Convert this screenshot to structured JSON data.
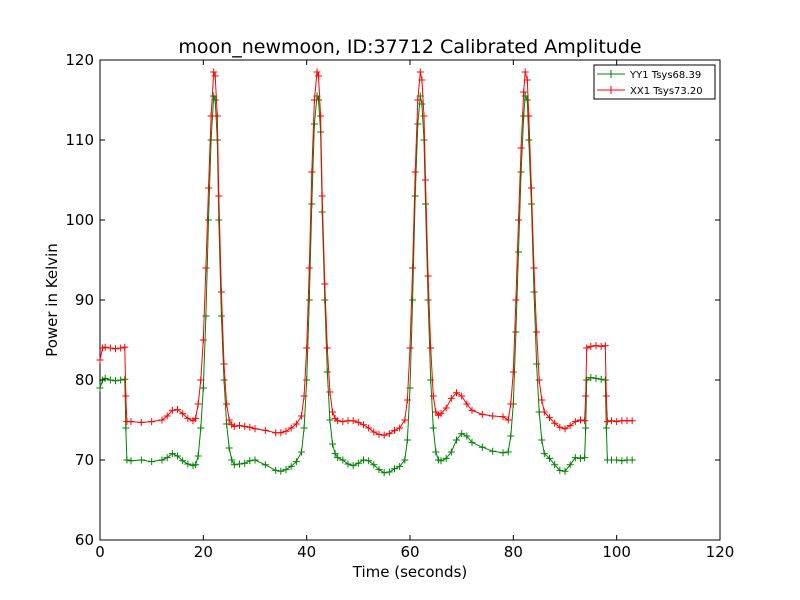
{
  "chart_data": {
    "type": "line",
    "title": "moon_newmoon, ID:37712 Calibrated Amplitude",
    "xlabel": "Time (seconds)",
    "ylabel": "Power in Kelvin",
    "xlim": [
      0,
      120
    ],
    "ylim": [
      60,
      120
    ],
    "xticks": [
      0,
      20,
      40,
      60,
      80,
      100,
      120
    ],
    "yticks": [
      60,
      70,
      80,
      90,
      100,
      110,
      120
    ],
    "grid": false,
    "legend_position": "top-right",
    "marker": "plus",
    "series": [
      {
        "name": "YY1 Tsys68.39",
        "color": "#008000",
        "x": [
          0,
          0.5,
          1,
          2,
          3,
          4,
          4.8,
          5.0,
          5.2,
          6,
          8,
          10,
          12,
          13,
          14,
          15,
          16,
          17,
          18,
          18.5,
          19,
          19.5,
          20,
          20.5,
          21,
          21.5,
          22,
          22.3,
          22.7,
          23,
          23.5,
          24,
          24.5,
          25,
          25.5,
          26,
          27,
          28,
          29,
          30,
          32,
          34,
          35,
          36,
          37,
          38,
          39,
          39.5,
          40,
          40.5,
          41,
          41.5,
          42,
          42.3,
          42.7,
          43,
          43.5,
          44,
          44.5,
          45,
          45.5,
          46,
          47,
          48,
          49,
          50,
          51,
          52,
          53,
          54,
          55,
          56,
          57,
          58,
          59,
          59.5,
          60,
          60.5,
          61,
          61.5,
          62,
          62.3,
          62.7,
          63,
          63.5,
          64,
          64.5,
          65,
          65.5,
          66,
          67,
          68,
          69,
          70,
          71,
          72,
          74,
          76,
          78,
          79,
          79.5,
          80,
          80.5,
          81,
          81.5,
          82,
          82.3,
          82.7,
          83,
          83.5,
          84,
          84.5,
          85,
          85.5,
          86,
          87,
          88,
          89,
          90,
          91,
          92,
          93,
          93.8,
          94.0,
          94.2,
          95,
          96,
          97,
          97.8,
          98.0,
          98.2,
          99,
          100,
          101,
          102,
          103
        ],
        "y": [
          79.0,
          80.0,
          80.2,
          80.0,
          79.9,
          80.0,
          80.1,
          74.0,
          70.0,
          69.9,
          70.0,
          69.8,
          70.0,
          70.3,
          70.8,
          70.5,
          69.9,
          69.5,
          69.3,
          69.4,
          70.5,
          74.0,
          79.0,
          88.0,
          100.0,
          110.0,
          115.5,
          115.0,
          110.0,
          100.0,
          88.0,
          80.0,
          74.5,
          71.5,
          70.0,
          69.4,
          69.5,
          69.6,
          69.9,
          70.0,
          69.4,
          68.7,
          68.6,
          68.8,
          69.2,
          69.8,
          71.0,
          74.0,
          80.0,
          90.0,
          102.0,
          112.0,
          115.5,
          115.0,
          111.0,
          101.0,
          90.0,
          81.0,
          75.0,
          72.0,
          70.8,
          70.3,
          70.0,
          69.5,
          69.3,
          69.6,
          70.0,
          69.9,
          69.4,
          68.8,
          68.4,
          68.5,
          68.9,
          69.2,
          70.0,
          72.5,
          79.0,
          90.0,
          103.0,
          112.0,
          115.5,
          114.5,
          110.0,
          102.0,
          90.0,
          80.0,
          74.0,
          71.0,
          70.0,
          69.9,
          70.2,
          71.0,
          72.5,
          73.3,
          73.0,
          72.2,
          71.6,
          71.1,
          70.9,
          71.0,
          73.0,
          77.0,
          86.0,
          96.0,
          106.0,
          113.0,
          115.5,
          115.0,
          110.0,
          102.0,
          91.0,
          82.0,
          76.0,
          72.5,
          70.8,
          70.2,
          69.4,
          68.7,
          68.6,
          69.4,
          70.3,
          70.2,
          70.3,
          74.0,
          80.0,
          80.3,
          80.2,
          80.1,
          80.0,
          74.0,
          70.0,
          70.0,
          70.0,
          69.9,
          70.0,
          70.0
        ]
      },
      {
        "name": "XX1 Tsys73.20",
        "color": "#ff0000",
        "x": [
          0,
          0.5,
          1,
          2,
          3,
          4,
          4.8,
          5.0,
          5.2,
          6,
          8,
          10,
          12,
          13,
          14,
          15,
          16,
          17,
          18,
          18.5,
          19,
          19.5,
          20,
          20.5,
          21,
          21.5,
          22,
          22.3,
          22.7,
          23,
          23.5,
          24,
          24.5,
          25,
          25.5,
          26,
          27,
          28,
          29,
          30,
          32,
          34,
          35,
          36,
          37,
          38,
          39,
          39.5,
          40,
          40.5,
          41,
          41.5,
          42,
          42.3,
          42.7,
          43,
          43.5,
          44,
          44.5,
          45,
          45.5,
          46,
          47,
          48,
          49,
          50,
          51,
          52,
          53,
          54,
          55,
          56,
          57,
          58,
          59,
          59.5,
          60,
          60.5,
          61,
          61.5,
          62,
          62.3,
          62.7,
          63,
          63.5,
          64,
          64.5,
          65,
          65.5,
          66,
          67,
          68,
          69,
          70,
          71,
          72,
          74,
          76,
          78,
          79,
          79.5,
          80,
          80.5,
          81,
          81.5,
          82,
          82.3,
          82.7,
          83,
          83.5,
          84,
          84.5,
          85,
          85.5,
          86,
          87,
          88,
          89,
          90,
          91,
          92,
          93,
          93.8,
          94.0,
          94.2,
          95,
          96,
          97,
          97.8,
          98.0,
          98.2,
          99,
          100,
          101,
          102,
          103
        ],
        "y": [
          82.5,
          84.0,
          84.1,
          84.0,
          83.9,
          84.0,
          84.1,
          78.0,
          74.8,
          74.8,
          74.7,
          74.8,
          75.0,
          75.5,
          76.2,
          76.3,
          75.8,
          75.2,
          74.9,
          75.2,
          77.0,
          80.0,
          85.0,
          94.0,
          104.0,
          113.0,
          118.5,
          118.0,
          113.0,
          103.0,
          91.0,
          82.0,
          77.0,
          75.0,
          74.4,
          74.2,
          74.3,
          74.2,
          74.1,
          73.9,
          73.7,
          73.4,
          73.4,
          73.6,
          74.0,
          74.5,
          75.5,
          78.0,
          84.0,
          94.0,
          106.0,
          115.0,
          118.5,
          118.0,
          113.0,
          103.0,
          92.0,
          84.0,
          78.5,
          76.0,
          75.2,
          74.9,
          74.8,
          74.9,
          74.9,
          74.7,
          74.4,
          74.0,
          73.5,
          73.2,
          73.1,
          73.3,
          73.7,
          74.0,
          75.0,
          77.5,
          84.0,
          94.0,
          106.0,
          115.0,
          118.5,
          117.5,
          113.0,
          105.0,
          93.0,
          84.0,
          78.0,
          76.0,
          75.6,
          75.8,
          76.5,
          77.7,
          78.4,
          78.0,
          77.0,
          76.2,
          75.7,
          75.5,
          75.4,
          75.0,
          77.0,
          81.0,
          90.0,
          100.0,
          109.0,
          116.0,
          118.5,
          117.5,
          113.0,
          104.0,
          94.0,
          86.0,
          80.0,
          77.5,
          76.0,
          75.3,
          74.6,
          74.1,
          73.9,
          74.3,
          74.8,
          75.0,
          74.9,
          78.0,
          84.0,
          84.2,
          84.3,
          84.2,
          84.3,
          78.0,
          74.8,
          74.9,
          74.8,
          74.9,
          74.9,
          74.9
        ]
      }
    ]
  }
}
